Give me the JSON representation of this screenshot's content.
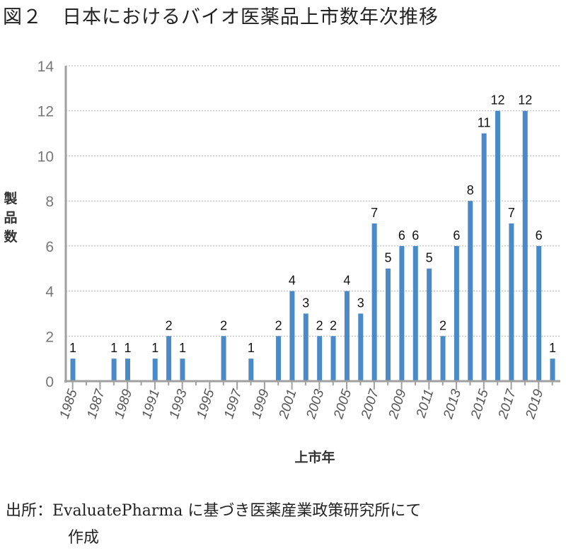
{
  "title": "図２　日本におけるバイオ医薬品上市数年次推移",
  "source": {
    "line1": "出所：EvaluatePharma に基づき医薬産業政策研究所にて",
    "line2": "作成"
  },
  "chart_data": {
    "type": "bar",
    "title": "図２　日本におけるバイオ医薬品上市数年次推移",
    "xlabel": "上市年",
    "ylabel": "製品数",
    "ylim": [
      0,
      14
    ],
    "yticks": [
      0,
      2,
      4,
      6,
      8,
      10,
      12,
      14
    ],
    "xtick_labels": [
      "1985",
      "1987",
      "1989",
      "1991",
      "1993",
      "1995",
      "1997",
      "1999",
      "2001",
      "2003",
      "2005",
      "2007",
      "2009",
      "2011",
      "2013",
      "2015",
      "2017",
      "2019"
    ],
    "grid": "horizontal dotted",
    "bar_color": "#4a8ac9",
    "categories": [
      1985,
      1986,
      1987,
      1988,
      1989,
      1990,
      1991,
      1992,
      1993,
      1994,
      1995,
      1996,
      1997,
      1998,
      1999,
      2000,
      2001,
      2002,
      2003,
      2004,
      2005,
      2006,
      2007,
      2008,
      2009,
      2010,
      2011,
      2012,
      2013,
      2014,
      2015,
      2016,
      2017,
      2018,
      2019,
      2020
    ],
    "values": [
      1,
      0,
      0,
      1,
      1,
      0,
      1,
      2,
      1,
      0,
      0,
      2,
      0,
      1,
      0,
      2,
      4,
      3,
      2,
      2,
      4,
      3,
      7,
      5,
      6,
      6,
      5,
      2,
      6,
      8,
      11,
      12,
      7,
      12,
      6,
      1
    ]
  }
}
